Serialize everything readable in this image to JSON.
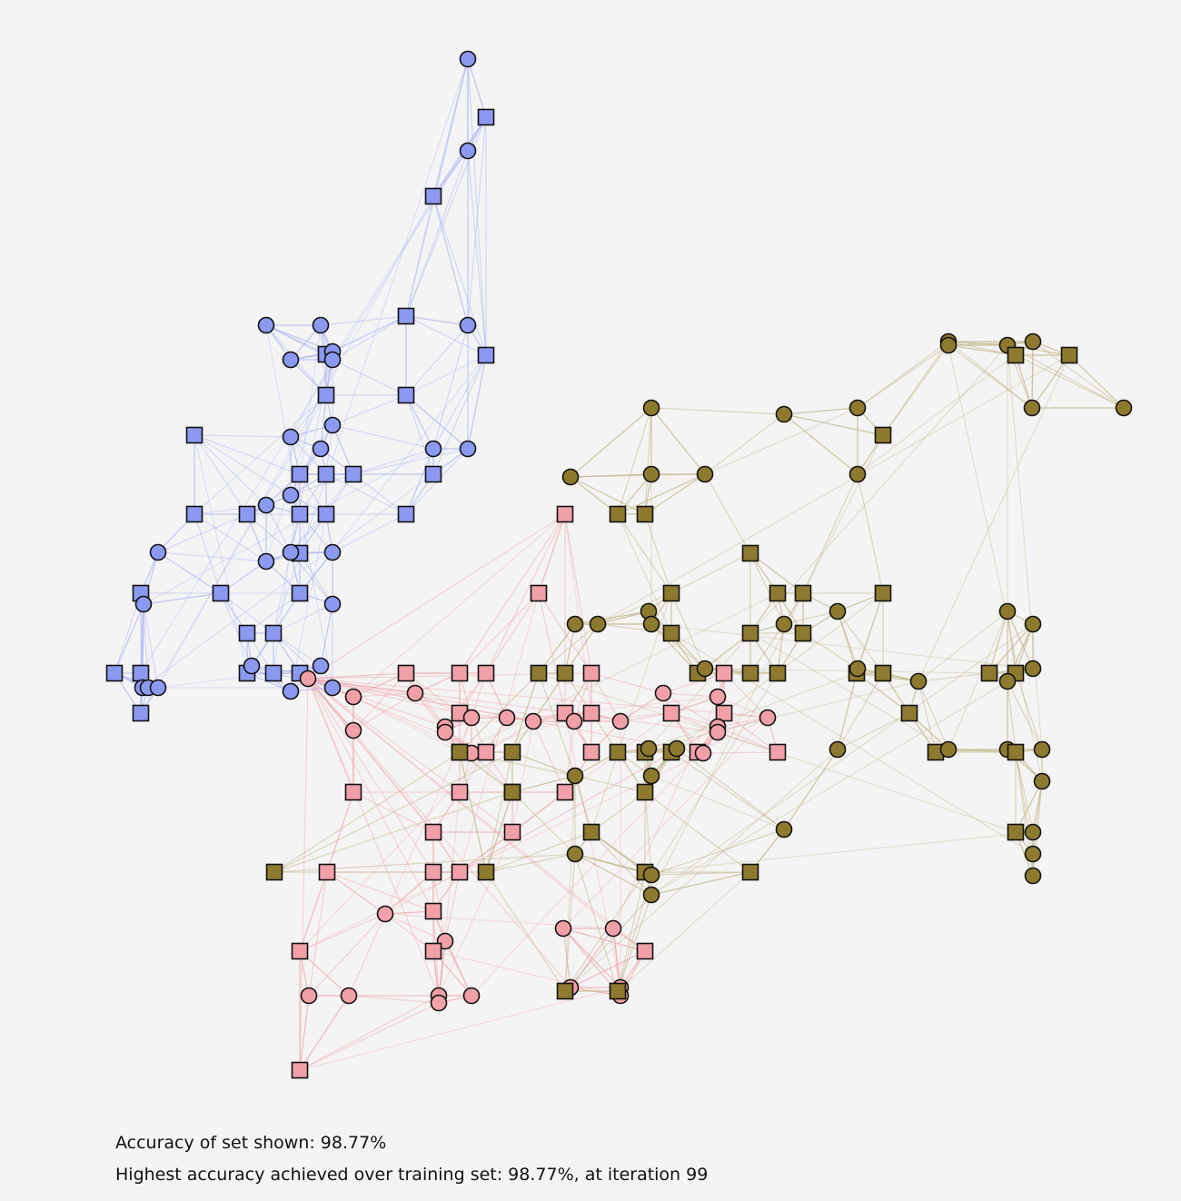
{
  "stats": {
    "accuracy_shown": "Accuracy of set shown: 98.77%",
    "highest_accuracy": "Highest accuracy achieved over training set: 98.77%, at iteration 99"
  },
  "legend": {
    "classes": [
      {
        "id": "blue",
        "fill": "#8b99f0",
        "edge": "#aab4f5"
      },
      {
        "id": "pink",
        "fill": "#f2a0a8",
        "edge": "#f2a9b0"
      },
      {
        "id": "olive",
        "fill": "#8e7a2f",
        "edge": "#c4ba8e"
      }
    ],
    "shapes": [
      "circle",
      "square"
    ]
  }
}
